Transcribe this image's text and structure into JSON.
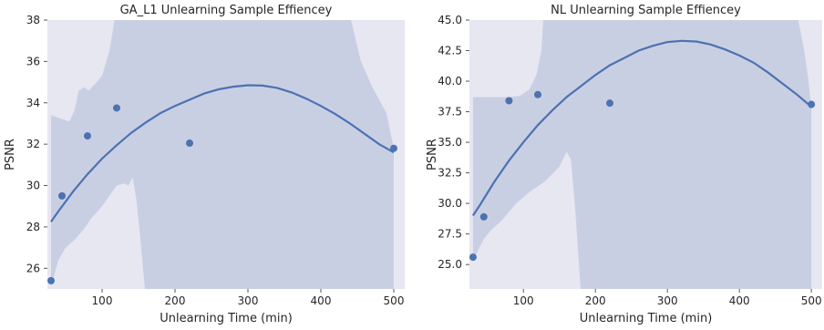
{
  "chart_data": [
    {
      "type": "scatter",
      "title": "GA_L1 Unlearning Sample Effiencey",
      "xlabel": "Unlearning Time (min)",
      "ylabel": "PSNR",
      "xlim": [
        25,
        515
      ],
      "ylim": [
        25.0,
        38.0
      ],
      "xticks": [
        100,
        200,
        300,
        400,
        500
      ],
      "yticks": [
        26,
        28,
        30,
        32,
        34,
        36,
        38
      ],
      "ytick_labels": [
        "26",
        "28",
        "30",
        "32",
        "34",
        "36",
        "38"
      ],
      "grid": false,
      "points": {
        "x": [
          30,
          45,
          80,
          120,
          220,
          500
        ],
        "y": [
          25.4,
          29.5,
          32.4,
          33.75,
          32.05,
          31.8
        ]
      },
      "fit": {
        "kind": "quadratic",
        "x": [
          30,
          40,
          60,
          80,
          100,
          120,
          140,
          160,
          180,
          200,
          220,
          240,
          260,
          280,
          300,
          320,
          340,
          360,
          380,
          400,
          420,
          440,
          460,
          480,
          500
        ],
        "y": [
          28.25,
          28.75,
          29.7,
          30.55,
          31.3,
          31.95,
          32.55,
          33.05,
          33.5,
          33.85,
          34.15,
          34.45,
          34.65,
          34.78,
          34.85,
          34.83,
          34.72,
          34.5,
          34.2,
          33.85,
          33.45,
          33.0,
          32.5,
          32.0,
          31.6
        ]
      },
      "band": {
        "x": [
          30,
          40,
          50,
          60,
          70,
          80,
          90,
          100,
          110,
          120,
          130,
          140,
          150,
          160,
          180,
          200,
          220,
          240,
          260,
          280,
          300,
          320,
          340,
          360,
          380,
          400,
          420,
          440,
          460,
          480,
          500
        ],
        "upper": [
          38,
          38,
          38,
          38,
          38,
          38,
          38,
          38,
          38,
          38,
          38,
          38,
          38,
          38,
          38,
          38,
          38,
          38,
          38,
          38,
          38,
          38,
          38,
          38,
          38,
          38,
          38,
          38,
          38,
          38,
          38
        ],
        "lower": [
          25,
          25,
          25,
          25,
          25,
          25,
          25,
          25,
          25,
          25,
          25,
          25,
          25,
          25,
          25,
          25,
          25,
          25,
          25,
          25,
          25,
          25,
          25,
          25,
          25,
          25,
          25,
          25,
          25,
          25,
          25
        ],
        "outline": {
          "x": [
            30,
            40,
            50,
            55,
            60,
            65,
            70,
            75,
            80,
            90,
            100,
            110,
            115,
            125,
            130,
            135,
            140,
            145,
            150,
            155,
            160
          ],
          "upper_top_y": [
            33.4,
            33.3,
            33.2,
            33.1,
            33.3,
            34.0,
            34.7,
            34.75,
            34.7,
            35.0,
            35.1,
            36.2,
            37.0,
            38.0
          ],
          "lower_bottom_y": [
            25.0,
            26.3,
            27.3,
            27.7,
            28.0,
            28.3,
            28.7,
            29.0,
            29.3,
            29.6,
            29.9,
            30.1,
            30.4,
            30.55,
            30.0,
            28.5,
            26.8,
            25.0
          ]
        },
        "note_visual": "confidence band fills most of the frame; outer regions lighter"
      },
      "colors": {
        "line": "#4c72b0",
        "band": "#c9cfe3",
        "background": "#e6e7f1"
      }
    },
    {
      "type": "scatter",
      "title": "NL Unlearning Sample Effiencey",
      "xlabel": "Unlearning Time (min)",
      "ylabel": "PSNR",
      "xlim": [
        25,
        515
      ],
      "ylim": [
        23.0,
        45.0
      ],
      "xticks": [
        100,
        200,
        300,
        400,
        500
      ],
      "yticks": [
        25.0,
        27.5,
        30.0,
        32.5,
        35.0,
        37.5,
        40.0,
        42.5,
        45.0
      ],
      "ytick_labels": [
        "25.0",
        "27.5",
        "30.0",
        "32.5",
        "35.0",
        "37.5",
        "40.0",
        "42.5",
        "45.0"
      ],
      "grid": false,
      "points": {
        "x": [
          30,
          45,
          80,
          120,
          220,
          500
        ],
        "y": [
          25.6,
          28.9,
          38.4,
          38.9,
          38.2,
          38.1
        ]
      },
      "fit": {
        "kind": "quadratic",
        "x": [
          30,
          40,
          60,
          80,
          100,
          120,
          140,
          160,
          180,
          200,
          220,
          240,
          260,
          280,
          300,
          320,
          340,
          360,
          380,
          400,
          420,
          440,
          460,
          480,
          500
        ],
        "y": [
          29.0,
          29.9,
          31.8,
          33.5,
          35.0,
          36.4,
          37.6,
          38.7,
          39.6,
          40.5,
          41.3,
          41.9,
          42.5,
          42.9,
          43.2,
          43.3,
          43.25,
          43.0,
          42.6,
          42.1,
          41.5,
          40.7,
          39.8,
          38.9,
          37.9
        ]
      },
      "colors": {
        "line": "#4c72b0",
        "band": "#c9cfe3",
        "background": "#e6e7f1"
      }
    }
  ]
}
